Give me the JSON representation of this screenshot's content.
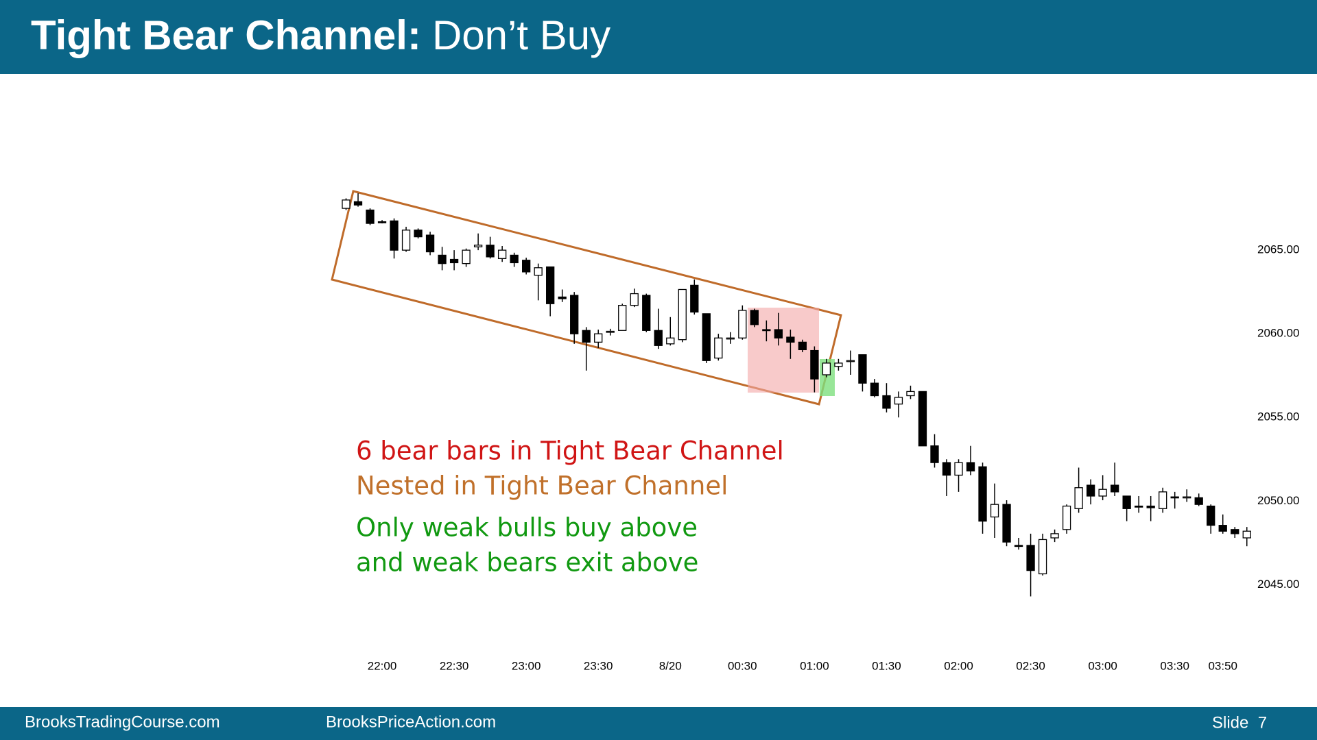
{
  "header": {
    "title": "Tight Bear Channel:",
    "title_rest": "Don’t Buy"
  },
  "annotations": [
    "6 bear bars in Tight Bear Channel",
    "Nested in Tight Bear Channel",
    "Only weak bulls buy above",
    "and weak bears exit above"
  ],
  "footer": {
    "left": "BrooksTradingCourse.com",
    "center": "BrooksPriceAction.com",
    "slide": "Slide  7"
  },
  "chart_data": {
    "type": "candlestick",
    "categories": [
      null,
      null,
      null,
      "22:00",
      null,
      null,
      null,
      null,
      null,
      "22:30",
      null,
      null,
      null,
      null,
      null,
      "23:00",
      null,
      null,
      null,
      null,
      null,
      "23:30",
      null,
      null,
      null,
      null,
      null,
      "8/20",
      null,
      null,
      null,
      null,
      null,
      "00:30",
      null,
      null,
      null,
      null,
      null,
      "01:00",
      null,
      null,
      null,
      null,
      null,
      "01:30",
      null,
      null,
      null,
      null,
      null,
      "02:00",
      null,
      null,
      null,
      null,
      null,
      "02:30",
      null,
      null,
      null,
      null,
      null,
      "03:00",
      null,
      null,
      null,
      null,
      null,
      "03:30",
      null,
      null,
      null,
      "03:50",
      null,
      null
    ],
    "open": [
      2067.5,
      2067.9,
      2067.4,
      2066.7,
      2066.75,
      2065.0,
      2066.2,
      2065.9,
      2064.7,
      2064.45,
      2064.2,
      2065.2,
      2065.3,
      2064.5,
      2064.7,
      2064.4,
      2063.5,
      2064.0,
      2062.2,
      2062.3,
      2060.2,
      2059.5,
      2060.1,
      2060.2,
      2061.7,
      2062.3,
      2060.2,
      2059.4,
      2059.65,
      2062.9,
      2061.2,
      2058.55,
      2059.7,
      2059.75,
      2061.4,
      2060.25,
      2060.25,
      2059.8,
      2059.5,
      2059.0,
      2057.55,
      2058.05,
      2058.35,
      2058.75,
      2057.05,
      2056.3,
      2055.8,
      2056.3,
      2056.55,
      2053.3,
      2052.3,
      2051.55,
      2052.3,
      2052.05,
      2049.05,
      2049.8,
      2047.35,
      2047.35,
      2045.65,
      2047.8,
      2048.3,
      2049.55,
      2050.95,
      2050.3,
      2050.95,
      2050.3,
      2049.7,
      2049.7,
      2049.55,
      2050.25,
      2050.2,
      2050.2,
      2049.7,
      2048.55,
      2048.3,
      2047.8
    ],
    "high": [
      2068.1,
      2068.4,
      2067.5,
      2066.8,
      2066.9,
      2066.4,
      2066.3,
      2066.1,
      2065.2,
      2065.0,
      2065.1,
      2066.0,
      2065.8,
      2065.25,
      2064.85,
      2064.55,
      2064.2,
      2064.0,
      2062.65,
      2062.5,
      2060.4,
      2060.25,
      2060.3,
      2061.8,
      2062.7,
      2062.4,
      2061.5,
      2061.0,
      2062.65,
      2063.25,
      2061.2,
      2060.0,
      2060.1,
      2061.7,
      2061.5,
      2060.8,
      2061.25,
      2060.25,
      2059.65,
      2059.25,
      2058.5,
      2058.5,
      2059.0,
      2058.75,
      2057.3,
      2057.05,
      2056.55,
      2056.9,
      2056.55,
      2054.0,
      2052.5,
      2052.5,
      2053.3,
      2052.3,
      2051.05,
      2050.05,
      2047.8,
      2048.05,
      2048.05,
      2048.3,
      2049.8,
      2052.0,
      2051.3,
      2051.55,
      2052.3,
      2050.3,
      2050.3,
      2050.3,
      2050.8,
      2050.55,
      2050.7,
      2050.45,
      2049.8,
      2049.2,
      2048.45,
      2048.45
    ],
    "low": [
      2067.4,
      2067.6,
      2066.5,
      2066.6,
      2064.5,
      2064.9,
      2065.7,
      2064.7,
      2063.8,
      2063.8,
      2064.0,
      2065.0,
      2064.5,
      2064.3,
      2064.0,
      2063.55,
      2062.0,
      2061.05,
      2061.9,
      2059.4,
      2057.8,
      2059.15,
      2059.9,
      2060.2,
      2061.6,
      2060.1,
      2059.1,
      2059.3,
      2059.5,
      2061.15,
      2058.25,
      2058.4,
      2059.4,
      2059.65,
      2060.4,
      2059.55,
      2059.3,
      2058.5,
      2058.9,
      2056.5,
      2057.4,
      2057.8,
      2057.55,
      2056.55,
      2056.2,
      2055.3,
      2055.0,
      2056.1,
      2053.3,
      2052.0,
      2050.3,
      2050.55,
      2051.55,
      2048.05,
      2047.8,
      2047.3,
      2047.1,
      2044.3,
      2045.55,
      2047.55,
      2048.05,
      2049.3,
      2049.8,
      2050.05,
      2050.3,
      2048.8,
      2049.3,
      2048.8,
      2049.3,
      2049.55,
      2049.95,
      2049.7,
      2048.05,
      2048.05,
      2047.8,
      2047.3
    ],
    "close": [
      2068.0,
      2067.7,
      2066.6,
      2066.65,
      2065.0,
      2066.2,
      2065.8,
      2064.9,
      2064.2,
      2064.25,
      2065.0,
      2065.3,
      2064.6,
      2065.0,
      2064.25,
      2063.7,
      2063.95,
      2061.8,
      2062.1,
      2060.0,
      2059.5,
      2060.0,
      2060.15,
      2061.7,
      2062.4,
      2060.2,
      2059.3,
      2059.75,
      2062.65,
      2061.3,
      2058.4,
      2059.75,
      2059.75,
      2061.4,
      2060.55,
      2060.2,
      2059.75,
      2059.5,
      2059.05,
      2057.3,
      2058.25,
      2058.25,
      2058.4,
      2057.05,
      2056.3,
      2055.55,
      2056.2,
      2056.55,
      2053.3,
      2052.3,
      2051.55,
      2052.3,
      2051.8,
      2048.8,
      2049.8,
      2047.55,
      2047.3,
      2045.85,
      2047.7,
      2048.05,
      2049.7,
      2050.8,
      2050.3,
      2050.7,
      2050.55,
      2049.55,
      2049.65,
      2049.6,
      2050.55,
      2050.2,
      2050.25,
      2049.8,
      2048.55,
      2048.2,
      2048.05,
      2048.2
    ],
    "up_color": "#ffffff",
    "down_color": "#000000",
    "ylim": [
      2041,
      2075
    ],
    "yticks": [
      {
        "value": 2045,
        "label": "2045.00"
      },
      {
        "value": 2050,
        "label": "2050.00"
      },
      {
        "value": 2055,
        "label": "2055.00"
      },
      {
        "value": 2060,
        "label": "2060.00"
      },
      {
        "value": 2065,
        "label": "2065.00"
      }
    ],
    "grid": false
  }
}
